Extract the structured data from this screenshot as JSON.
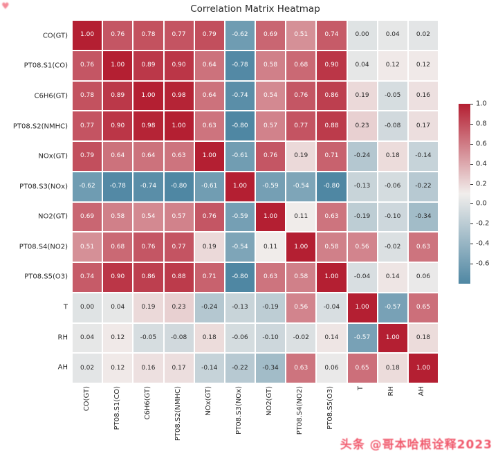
{
  "title": "Correlation Matrix Heatmap",
  "watermark": "头条 @哥本哈根诠释2023",
  "corner_mark": "♥",
  "chart_data": {
    "type": "heatmap",
    "title": "Correlation Matrix Heatmap",
    "labels": [
      "CO(GT)",
      "PT08.S1(CO)",
      "C6H6(GT)",
      "PT08.S2(NMHC)",
      "NOx(GT)",
      "PT08.S3(NOx)",
      "NO2(GT)",
      "PT08.S4(NO2)",
      "PT08.S5(O3)",
      "T",
      "RH",
      "AH"
    ],
    "matrix": [
      [
        1.0,
        0.76,
        0.78,
        0.77,
        0.79,
        -0.62,
        0.69,
        0.51,
        0.74,
        0.0,
        0.04,
        0.02
      ],
      [
        0.76,
        1.0,
        0.89,
        0.9,
        0.64,
        -0.78,
        0.58,
        0.68,
        0.9,
        0.04,
        0.12,
        0.12
      ],
      [
        0.78,
        0.89,
        1.0,
        0.98,
        0.64,
        -0.74,
        0.54,
        0.76,
        0.86,
        0.19,
        -0.05,
        0.16
      ],
      [
        0.77,
        0.9,
        0.98,
        1.0,
        0.63,
        -0.8,
        0.57,
        0.77,
        0.88,
        0.23,
        -0.08,
        0.17
      ],
      [
        0.79,
        0.64,
        0.64,
        0.63,
        1.0,
        -0.61,
        0.76,
        0.19,
        0.71,
        -0.24,
        0.18,
        -0.14
      ],
      [
        -0.62,
        -0.78,
        -0.74,
        -0.8,
        -0.61,
        1.0,
        -0.59,
        -0.54,
        -0.8,
        -0.13,
        -0.06,
        -0.22
      ],
      [
        0.69,
        0.58,
        0.54,
        0.57,
        0.76,
        -0.59,
        1.0,
        0.11,
        0.63,
        -0.19,
        -0.1,
        -0.34
      ],
      [
        0.51,
        0.68,
        0.76,
        0.77,
        0.19,
        -0.54,
        0.11,
        1.0,
        0.58,
        0.56,
        -0.02,
        0.63
      ],
      [
        0.74,
        0.9,
        0.86,
        0.88,
        0.71,
        -0.8,
        0.63,
        0.58,
        1.0,
        -0.04,
        0.14,
        0.06
      ],
      [
        0.0,
        0.04,
        0.19,
        0.23,
        -0.24,
        -0.13,
        -0.19,
        0.56,
        -0.04,
        1.0,
        -0.57,
        0.65
      ],
      [
        0.04,
        0.12,
        -0.05,
        -0.08,
        0.18,
        -0.06,
        -0.1,
        -0.02,
        0.14,
        -0.57,
        1.0,
        0.18
      ],
      [
        0.02,
        0.12,
        0.16,
        0.17,
        -0.14,
        -0.22,
        -0.34,
        0.63,
        0.06,
        0.65,
        0.18,
        1.0
      ]
    ],
    "vmin": -0.8,
    "vmax": 1.0,
    "colorbar_ticks": [
      "1.0",
      "0.8",
      "0.6",
      "0.4",
      "0.2",
      "0.0",
      "-0.2",
      "-0.4",
      "-0.6"
    ],
    "colors": {
      "positive": "#b41f32",
      "mid": "#f1eeec",
      "negative": "#4f87a3",
      "annot_dark": "#262626",
      "annot_light": "#ffffff"
    },
    "legend_position": "right",
    "grid_line_color": "#ffffff"
  },
  "watermark_color": "#ee3f55"
}
